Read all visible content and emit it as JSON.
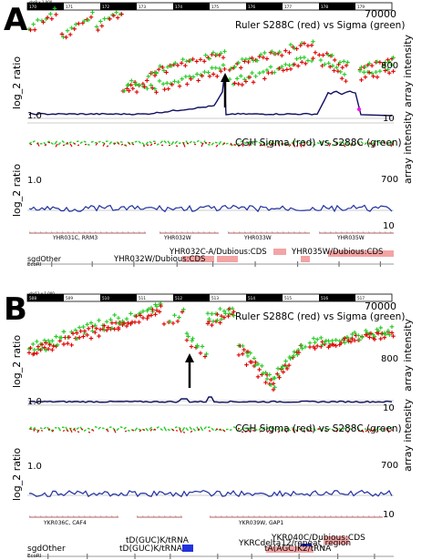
{
  "panels": [
    {
      "label": "A",
      "ruler_label": "chr8 x 1,000",
      "ruler_ticks": [
        "170",
        "171",
        "172",
        "173",
        "174",
        "175",
        "176",
        "177",
        "178",
        "179",
        "180"
      ],
      "top_title": "Ruler S288C (red) vs Sigma (green)",
      "mid_title": "CGH Sigma (red) vs S288C (green)",
      "ylabel": "log_2 ratio",
      "right_label": "array intensity",
      "top_intensity_ticks": [
        "70000",
        "800",
        "10"
      ],
      "mid_ratio_tick": "1.0",
      "mid_intensity_ticks": [
        "700",
        "10"
      ],
      "top_ratio_tick": "1.0",
      "genes": [
        "YHR031C, RRM3",
        "YHR032W",
        "YHR033W",
        "YHR035W"
      ],
      "features_label": "sgdOther",
      "ecori_label": "EcoRI",
      "annotations": [
        "YHR032C-A/Dubious:CDS",
        "YHR032W/Dubious:CDS",
        "YHR035W/Dubious:CDS"
      ]
    },
    {
      "label": "B",
      "ruler_label": "chr11 x 1,000",
      "ruler_ticks": [
        "508",
        "509",
        "510",
        "511",
        "512",
        "513",
        "514",
        "515",
        "516",
        "517",
        "518"
      ],
      "top_title": "Ruler S288C (red) vs Sigma (green)",
      "mid_title": "CGH Sigma (red) vs S288C (green)",
      "ylabel": "log_2 ratio",
      "right_label": "array intensity",
      "top_intensity_ticks": [
        "70000",
        "800",
        "10"
      ],
      "mid_ratio_tick": "1.0",
      "mid_intensity_ticks": [
        "700",
        "10"
      ],
      "top_ratio_tick": "1.0",
      "genes": [
        "YKR036C, CAF4",
        "YKR039W, GAP1"
      ],
      "features_label": "sgdOther",
      "ecori_label": "EcoRI",
      "annotations": [
        "YKR040C/Dubious:CDS",
        "tD(GUC)K/tRNA",
        "YKRCdelta12/repeat_region",
        "tD(GUC)K/tRNA",
        "tA(AGC)K2/tRNA"
      ]
    }
  ],
  "colors": {
    "red": "#e00000",
    "green": "#22cc22",
    "navy": "#101060",
    "pink": "#f3a4a4",
    "mauve": "#c08080",
    "gray": "#999999"
  }
}
